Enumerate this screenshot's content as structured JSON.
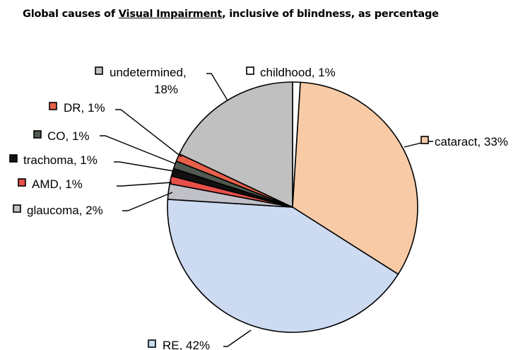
{
  "chart_data": {
    "type": "pie",
    "title_parts": [
      "Global causes of ",
      "Visual Impairment",
      ", inclusive of blindness, as percentage"
    ],
    "slices": [
      {
        "label": "childhood, 1%",
        "value": 1,
        "color": "#ffffff"
      },
      {
        "label": "cataract, 33%",
        "value": 33,
        "color": "#f8cba6"
      },
      {
        "label": "RE, 42%",
        "value": 42,
        "color": "#ccdaf2"
      },
      {
        "label": "glaucoma, 2%",
        "value": 2,
        "color": "#c0c0c8"
      },
      {
        "label": "AMD, 1%",
        "value": 1,
        "color": "#e8504a"
      },
      {
        "label": "trachoma, 1%",
        "value": 1,
        "color": "#111111"
      },
      {
        "label": "CO, 1%",
        "value": 1,
        "color": "#505a50"
      },
      {
        "label": "DR, 1%",
        "value": 1,
        "color": "#e8604a"
      },
      {
        "label": "undetermined, 18%",
        "value": 18,
        "color": "#c0c0c0"
      }
    ],
    "legend": "labels beside slices with leader lines",
    "start": "12 o'clock",
    "direction": "clockwise"
  }
}
